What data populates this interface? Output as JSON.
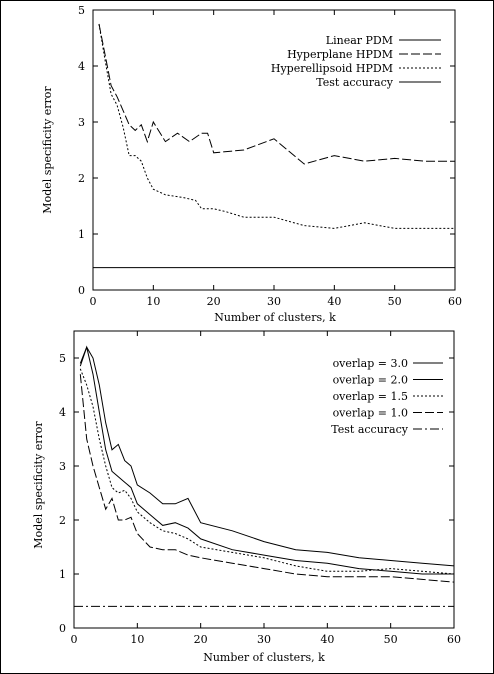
{
  "chart_data": [
    {
      "type": "line",
      "xlabel": "Number of clusters, k",
      "ylabel": "Model specificity error",
      "xlim": [
        0,
        60
      ],
      "ylim": [
        0,
        5
      ],
      "xticks": [
        0,
        10,
        20,
        30,
        40,
        50,
        60
      ],
      "yticks": [
        0,
        1,
        2,
        3,
        4,
        5
      ],
      "grid": false,
      "legend": "top-right",
      "series": [
        {
          "name": "Linear PDM",
          "style": "solid",
          "x": [
            0,
            60
          ],
          "y": [
            5.0,
            5.0
          ]
        },
        {
          "name": "Hyperplane HPDM",
          "style": "long-dash",
          "x": [
            1,
            2,
            3,
            4,
            5,
            6,
            7,
            8,
            9,
            10,
            12,
            14,
            16,
            18,
            19,
            20,
            25,
            30,
            35,
            40,
            45,
            50,
            55,
            60
          ],
          "y": [
            4.75,
            4.2,
            3.65,
            3.45,
            3.2,
            2.95,
            2.85,
            2.95,
            2.65,
            3.0,
            2.65,
            2.8,
            2.65,
            2.8,
            2.8,
            2.45,
            2.5,
            2.7,
            2.25,
            2.4,
            2.3,
            2.35,
            2.3,
            2.3
          ]
        },
        {
          "name": "Hyperellipsoid HPDM",
          "style": "dotted",
          "x": [
            1,
            2,
            3,
            4,
            5,
            6,
            7,
            8,
            9,
            10,
            12,
            15,
            17,
            18,
            20,
            22,
            25,
            30,
            35,
            40,
            45,
            50,
            55,
            60
          ],
          "y": [
            4.75,
            4.1,
            3.5,
            3.3,
            2.9,
            2.4,
            2.4,
            2.3,
            2.0,
            1.8,
            1.7,
            1.65,
            1.6,
            1.45,
            1.45,
            1.4,
            1.3,
            1.3,
            1.15,
            1.1,
            1.2,
            1.1,
            1.1,
            1.1
          ]
        },
        {
          "name": "Test accuracy",
          "style": "solid",
          "x": [
            0,
            60
          ],
          "y": [
            0.4,
            0.4
          ]
        }
      ]
    },
    {
      "type": "line",
      "xlabel": "Number of clusters, k",
      "ylabel": "Model specificity error",
      "xlim": [
        0,
        60
      ],
      "ylim": [
        0,
        5.5
      ],
      "xticks": [
        0,
        10,
        20,
        30,
        40,
        50,
        60
      ],
      "yticks": [
        0,
        1,
        2,
        3,
        4,
        5
      ],
      "grid": false,
      "legend": "top-right",
      "series": [
        {
          "name": "overlap = 3.0",
          "style": "solid",
          "x": [
            1,
            2,
            3,
            4,
            5,
            6,
            7,
            8,
            9,
            10,
            12,
            14,
            16,
            18,
            20,
            25,
            30,
            35,
            40,
            45,
            50,
            55,
            60
          ],
          "y": [
            4.9,
            5.2,
            5.0,
            4.5,
            3.8,
            3.3,
            3.4,
            3.1,
            3.0,
            2.65,
            2.5,
            2.3,
            2.3,
            2.4,
            1.95,
            1.8,
            1.6,
            1.45,
            1.4,
            1.3,
            1.25,
            1.2,
            1.15
          ]
        },
        {
          "name": "overlap = 2.0",
          "style": "solid",
          "x": [
            1,
            2,
            3,
            4,
            5,
            6,
            7,
            8,
            9,
            10,
            12,
            14,
            16,
            18,
            20,
            25,
            30,
            35,
            40,
            45,
            50,
            55,
            60
          ],
          "y": [
            4.85,
            5.2,
            4.7,
            4.0,
            3.3,
            2.9,
            2.8,
            2.7,
            2.6,
            2.3,
            2.1,
            1.9,
            1.95,
            1.85,
            1.65,
            1.45,
            1.35,
            1.25,
            1.2,
            1.1,
            1.05,
            1.0,
            1.0
          ]
        },
        {
          "name": "overlap = 1.5",
          "style": "dotted",
          "x": [
            1,
            2,
            3,
            4,
            5,
            6,
            7,
            8,
            9,
            10,
            12,
            14,
            16,
            18,
            20,
            25,
            30,
            35,
            40,
            45,
            50,
            55,
            60
          ],
          "y": [
            4.8,
            4.5,
            4.1,
            3.5,
            3.0,
            2.6,
            2.5,
            2.55,
            2.4,
            2.15,
            1.95,
            1.8,
            1.75,
            1.65,
            1.5,
            1.4,
            1.3,
            1.15,
            1.05,
            1.05,
            1.1,
            1.05,
            1.0
          ]
        },
        {
          "name": "overlap = 1.0",
          "style": "long-dash",
          "x": [
            1,
            2,
            3,
            4,
            5,
            6,
            7,
            8,
            9,
            10,
            12,
            14,
            16,
            18,
            20,
            25,
            30,
            35,
            40,
            45,
            50,
            55,
            60
          ],
          "y": [
            4.7,
            3.5,
            3.0,
            2.6,
            2.2,
            2.4,
            2.0,
            2.0,
            2.05,
            1.75,
            1.5,
            1.45,
            1.45,
            1.35,
            1.3,
            1.2,
            1.1,
            1.0,
            0.95,
            0.95,
            0.95,
            0.9,
            0.85
          ]
        },
        {
          "name": "Test accuracy",
          "style": "dash-dot",
          "x": [
            0,
            60
          ],
          "y": [
            0.4,
            0.4
          ]
        }
      ]
    }
  ]
}
